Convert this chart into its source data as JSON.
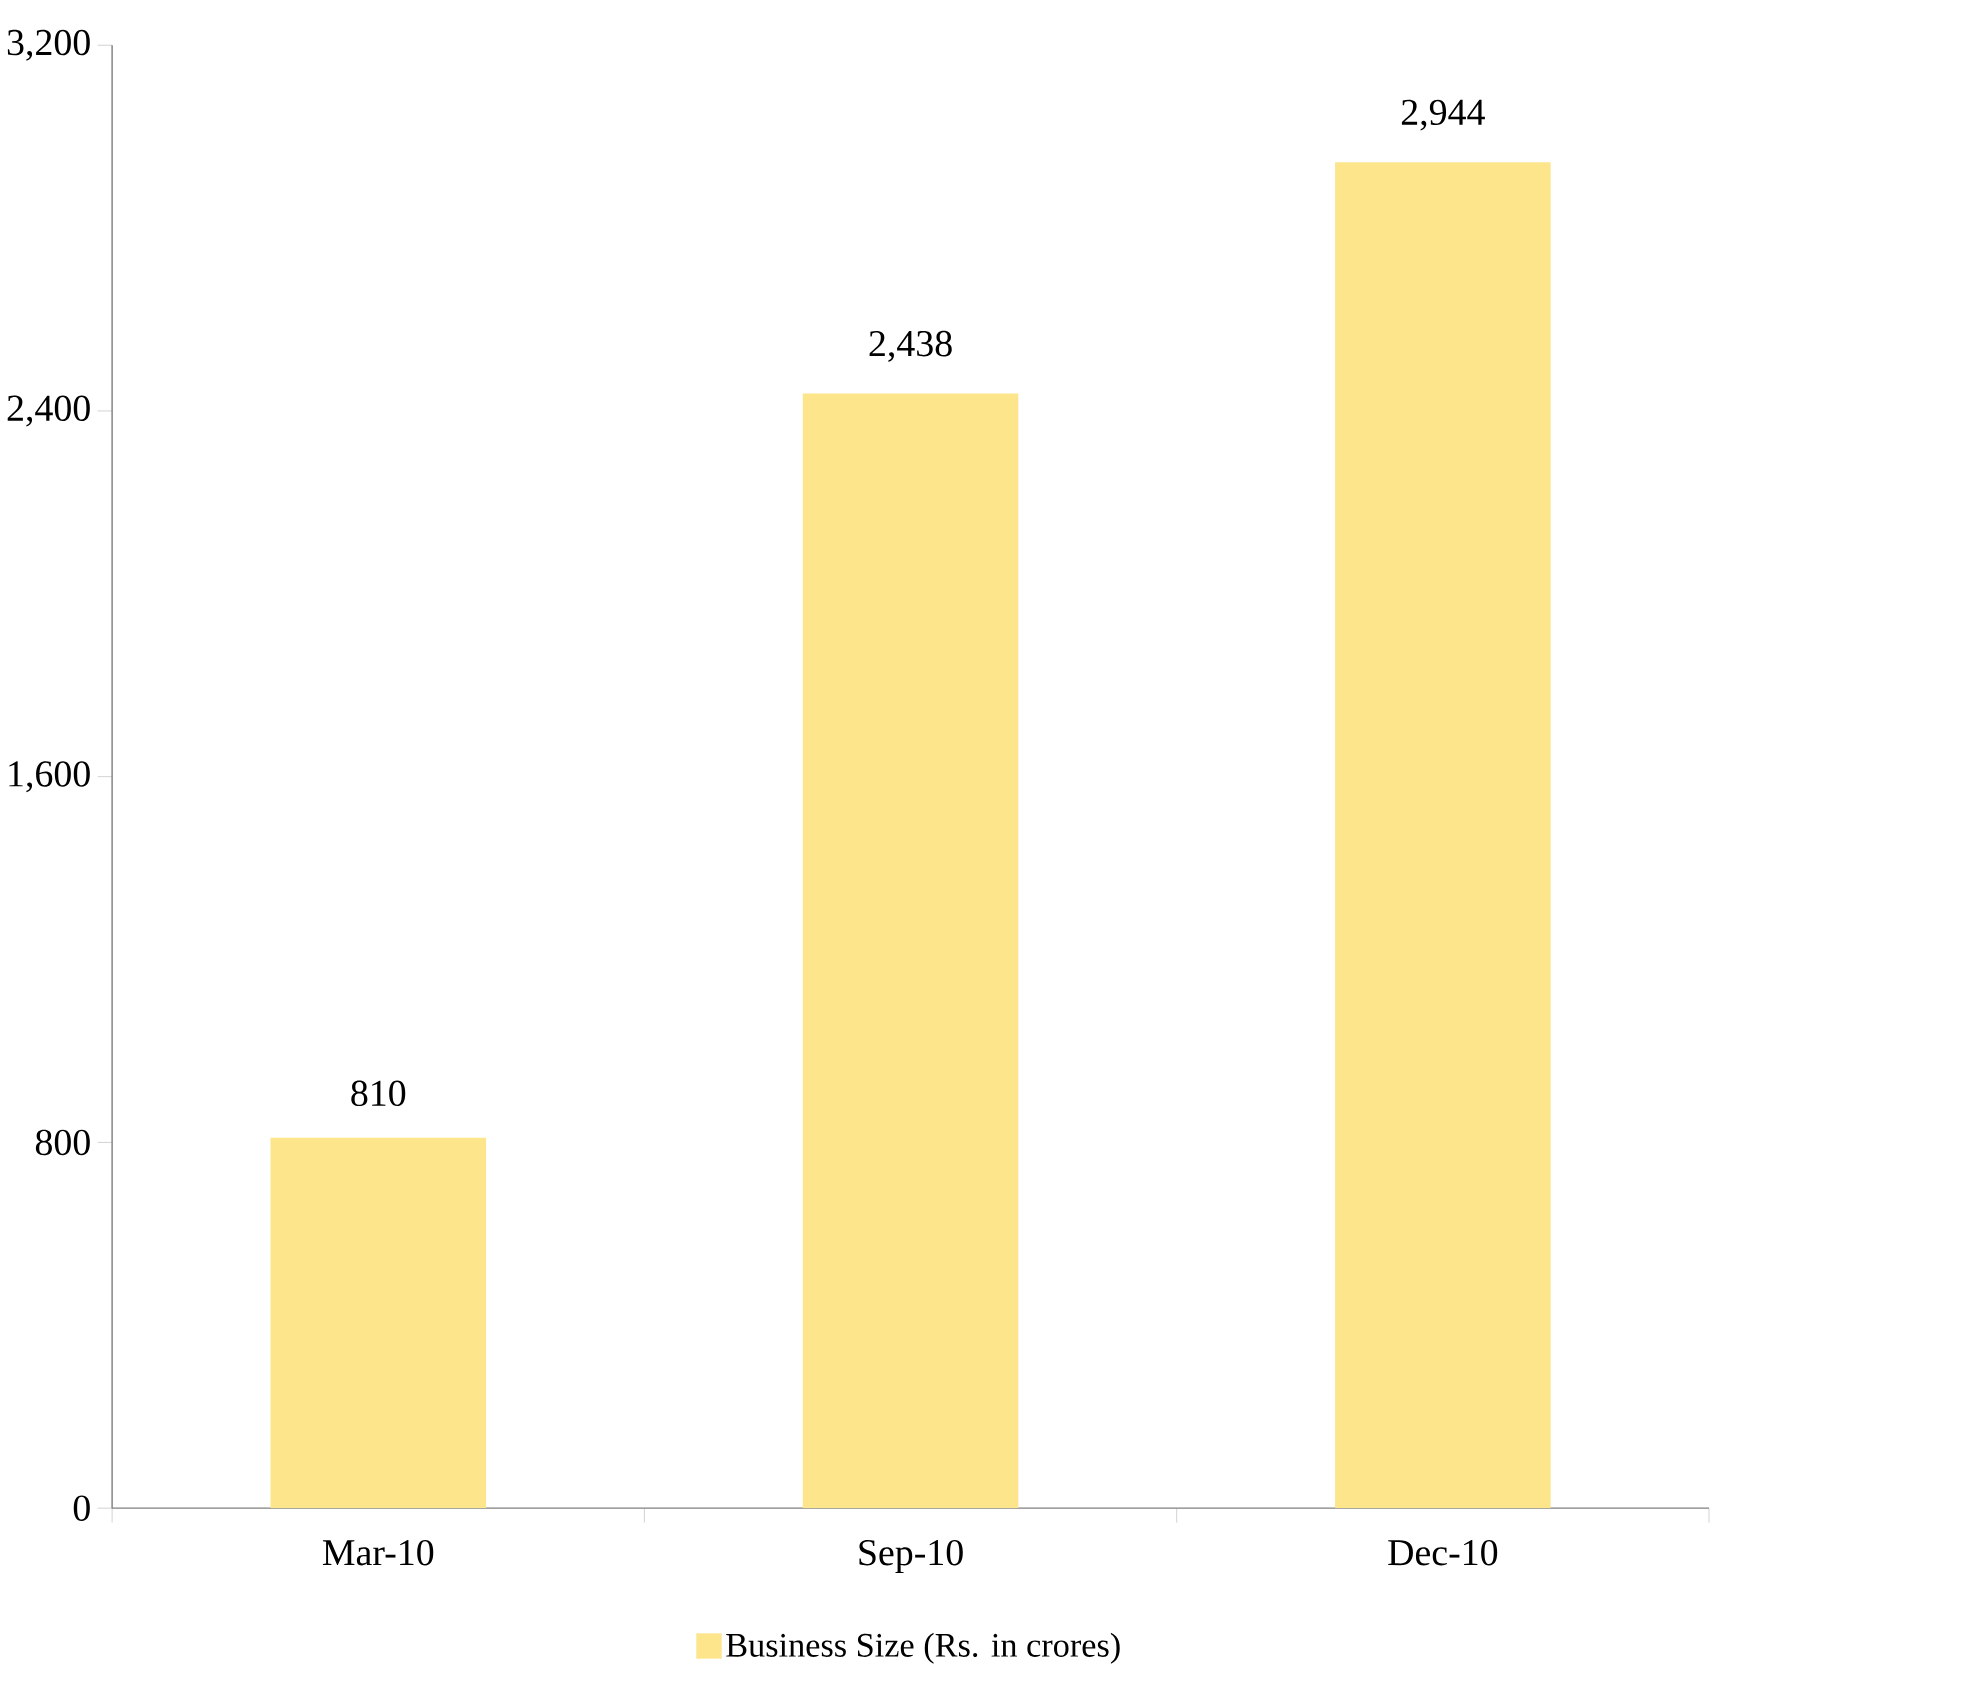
{
  "chart_data": {
    "type": "bar",
    "categories": [
      "Mar-10",
      "Sep-10",
      "Dec-10"
    ],
    "series": [
      {
        "name": "Business Size (Rs. in crores)",
        "color": "#fde58c",
        "values": [
          810,
          2438,
          2944
        ],
        "value_labels": [
          "810",
          "2,438",
          "2,944"
        ]
      }
    ],
    "ylim": [
      0,
      3200
    ],
    "yticks": [
      0,
      800,
      {
        "value": 1600,
        "label": "1,600"
      },
      {
        "value": 2400,
        "label": "2,400"
      },
      {
        "value": 3200,
        "label": "3,200"
      }
    ],
    "grid": false,
    "legend": "bottom"
  }
}
